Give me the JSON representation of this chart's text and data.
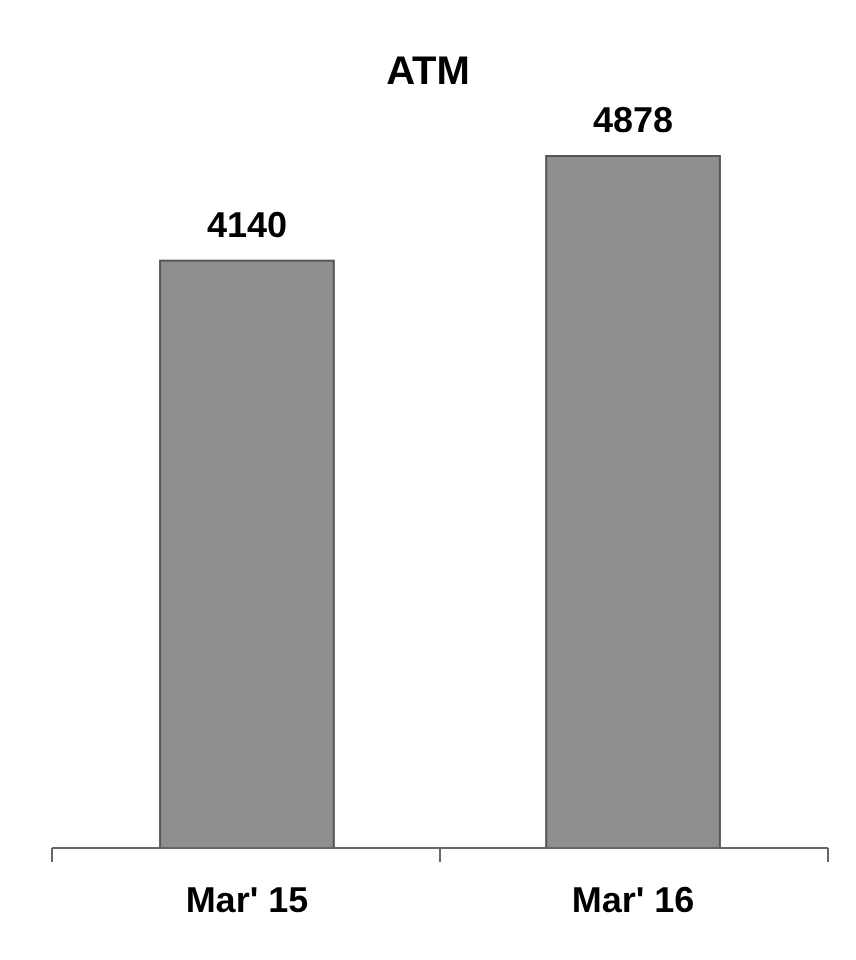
{
  "chart_data": {
    "type": "bar",
    "title": "ATM",
    "categories": [
      "Mar' 15",
      "Mar' 16"
    ],
    "values": [
      4140,
      4878
    ],
    "color": "#8f8f8f",
    "data_labels": true,
    "tick_labels": "x"
  }
}
